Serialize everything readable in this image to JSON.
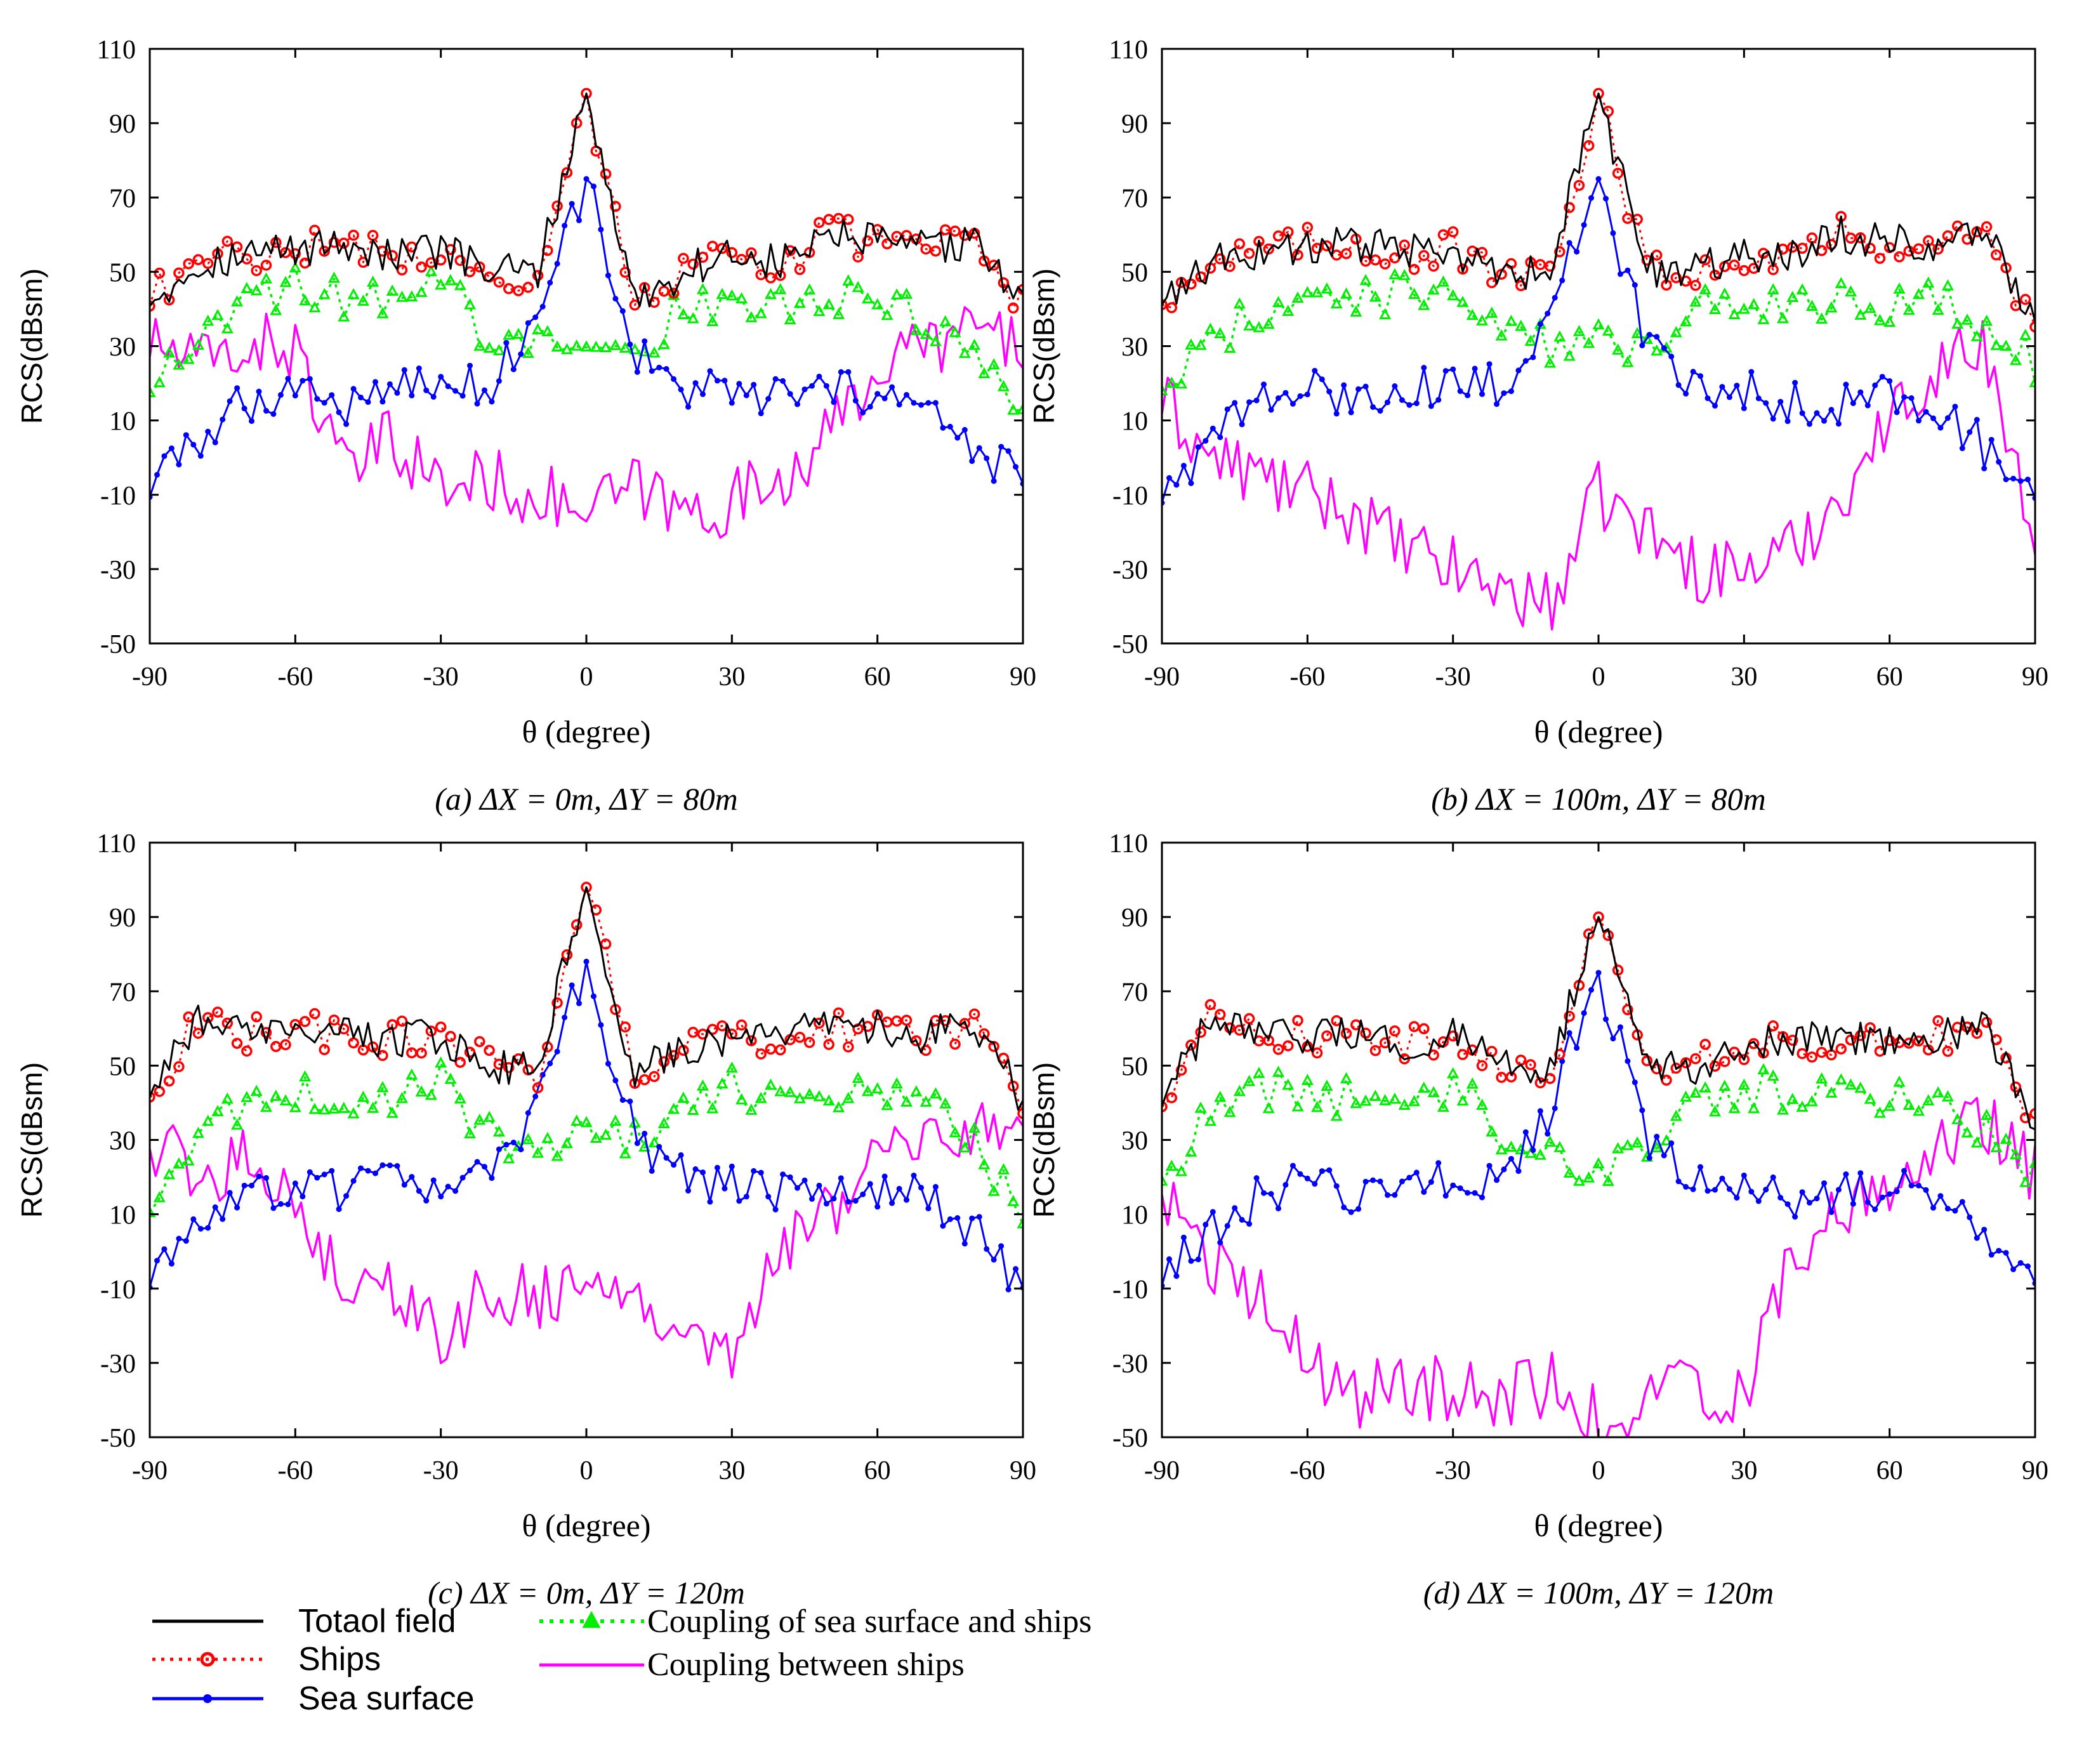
{
  "colors": {
    "total": "#000000",
    "ships": "#ff0000",
    "sea": "#0000ff",
    "coupling_sea_ships": "#00ee00",
    "coupling_ships": "#ff00ff"
  },
  "legend": {
    "total": "Totaol field",
    "ships": "Ships",
    "sea": "Sea surface",
    "coupling_sea_ships": "Coupling of sea surface and ships",
    "coupling_ships": "Coupling between ships"
  },
  "chart_data": [
    {
      "type": "line",
      "caption": "(a)  ΔX = 0m, ΔY = 80m",
      "xlabel": "θ (degree)",
      "ylabel": "RCS(dBsm)",
      "xlim": [
        -90,
        90
      ],
      "ylim": [
        -50,
        110
      ],
      "xticks": [
        "-90",
        "-60",
        "-30",
        "0",
        "30",
        "60",
        "90"
      ],
      "yticks": [
        "110",
        "90",
        "70",
        "50",
        "30",
        "10",
        "-10",
        "-30",
        "-50"
      ],
      "x": [
        -90,
        -80,
        -70,
        -60,
        -50,
        -40,
        -30,
        -20,
        -10,
        0,
        10,
        20,
        30,
        40,
        50,
        60,
        70,
        80,
        90
      ],
      "series": [
        {
          "name": "Totaol field",
          "values": [
            43,
            52,
            55,
            56,
            58,
            54,
            56,
            50,
            50,
            98,
            42,
            50,
            55,
            52,
            60,
            58,
            56,
            58,
            41
          ]
        },
        {
          "name": "Ships",
          "values": [
            43,
            52,
            55,
            56,
            58,
            54,
            56,
            50,
            48,
            98,
            42,
            50,
            55,
            52,
            60,
            58,
            56,
            58,
            41
          ]
        },
        {
          "name": "Sea surface",
          "values": [
            -8,
            5,
            15,
            19,
            14,
            20,
            19,
            20,
            38,
            75,
            28,
            18,
            17,
            16,
            17,
            18,
            12,
            1,
            -5
          ]
        },
        {
          "name": "Coupling of sea surface and ships",
          "values": [
            20,
            35,
            43,
            46,
            42,
            42,
            47,
            32,
            30,
            35,
            30,
            40,
            44,
            40,
            42,
            42,
            38,
            30,
            10
          ]
        },
        {
          "name": "Coupling between ships",
          "values": [
            31,
            25,
            30,
            30,
            -5,
            5,
            -8,
            -6,
            -10,
            -15,
            -8,
            -15,
            -12,
            -5,
            5,
            25,
            30,
            35,
            30
          ]
        }
      ]
    },
    {
      "type": "line",
      "caption": "(b)  ΔX = 100m, ΔY = 80m",
      "xlabel": "θ (degree)",
      "ylabel": "RCS(dBsm)",
      "xlim": [
        -90,
        90
      ],
      "ylim": [
        -50,
        110
      ],
      "xticks": [
        "-90",
        "-60",
        "-30",
        "0",
        "30",
        "60",
        "90"
      ],
      "yticks": [
        "110",
        "90",
        "70",
        "50",
        "30",
        "10",
        "-10",
        "-30",
        "-50"
      ],
      "x": [
        -90,
        -80,
        -70,
        -60,
        -50,
        -40,
        -30,
        -20,
        -10,
        0,
        10,
        20,
        30,
        40,
        50,
        60,
        70,
        80,
        90
      ],
      "series": [
        {
          "name": "Totaol field",
          "values": [
            43,
            52,
            56,
            57,
            58,
            55,
            56,
            48,
            50,
            98,
            50,
            50,
            55,
            55,
            60,
            58,
            58,
            60,
            35
          ]
        },
        {
          "name": "Ships",
          "values": [
            43,
            52,
            56,
            57,
            58,
            55,
            56,
            48,
            48,
            98,
            50,
            50,
            55,
            55,
            60,
            58,
            58,
            60,
            35
          ]
        },
        {
          "name": "Sea surface",
          "values": [
            -10,
            5,
            15,
            18,
            15,
            20,
            18,
            20,
            37,
            75,
            30,
            20,
            18,
            15,
            15,
            18,
            14,
            2,
            -10
          ]
        },
        {
          "name": "Coupling of sea surface and ships",
          "values": [
            20,
            30,
            40,
            44,
            42,
            44,
            47,
            32,
            30,
            30,
            30,
            42,
            44,
            40,
            42,
            42,
            42,
            35,
            25
          ]
        },
        {
          "name": "Coupling between ships",
          "values": [
            15,
            0,
            -5,
            -10,
            -15,
            -25,
            -30,
            -35,
            -40,
            -10,
            -20,
            -30,
            -30,
            -25,
            -10,
            10,
            25,
            30,
            -25
          ]
        }
      ]
    },
    {
      "type": "line",
      "caption": "(c)  ΔX = 0m, ΔY = 120m",
      "xlabel": "θ (degree)",
      "ylabel": "RCS(dBsm)",
      "xlim": [
        -90,
        90
      ],
      "ylim": [
        -50,
        110
      ],
      "xticks": [
        "-90",
        "-60",
        "-30",
        "0",
        "30",
        "60",
        "90"
      ],
      "yticks": [
        "110",
        "90",
        "70",
        "50",
        "30",
        "10",
        "-10",
        "-30",
        "-50"
      ],
      "x": [
        -90,
        -80,
        -70,
        -60,
        -50,
        -40,
        -30,
        -20,
        -10,
        0,
        10,
        20,
        30,
        40,
        50,
        60,
        70,
        80,
        90
      ],
      "series": [
        {
          "name": "Totaol field",
          "values": [
            43,
            62,
            58,
            60,
            58,
            57,
            58,
            50,
            50,
            98,
            48,
            55,
            58,
            58,
            60,
            60,
            58,
            62,
            41
          ]
        },
        {
          "name": "Ships",
          "values": [
            43,
            62,
            58,
            60,
            58,
            57,
            58,
            50,
            48,
            98,
            48,
            55,
            58,
            58,
            60,
            60,
            58,
            62,
            41
          ]
        },
        {
          "name": "Sea surface",
          "values": [
            -8,
            8,
            15,
            18,
            15,
            20,
            18,
            20,
            38,
            78,
            30,
            20,
            18,
            15,
            15,
            18,
            14,
            5,
            -10
          ]
        },
        {
          "name": "Coupling of sea surface and ships",
          "values": [
            12,
            30,
            42,
            43,
            40,
            42,
            45,
            32,
            28,
            30,
            30,
            40,
            45,
            42,
            42,
            42,
            40,
            30,
            8
          ]
        },
        {
          "name": "Coupling between ships",
          "values": [
            30,
            20,
            25,
            15,
            -10,
            -10,
            -25,
            -10,
            -12,
            -10,
            -15,
            -20,
            -25,
            0,
            10,
            25,
            30,
            35,
            30
          ]
        }
      ]
    },
    {
      "type": "line",
      "caption": "(d)  ΔX = 100m, ΔY = 120m",
      "xlabel": "θ (degree)",
      "ylabel": "RCS(dBsm)",
      "xlim": [
        -90,
        90
      ],
      "ylim": [
        -50,
        110
      ],
      "xticks": [
        "-90",
        "-60",
        "-30",
        "0",
        "30",
        "60",
        "90"
      ],
      "yticks": [
        "110",
        "90",
        "70",
        "50",
        "30",
        "10",
        "-10",
        "-30",
        "-50"
      ],
      "x": [
        -90,
        -80,
        -70,
        -60,
        -50,
        -40,
        -30,
        -20,
        -10,
        0,
        10,
        20,
        30,
        40,
        50,
        60,
        70,
        80,
        90
      ],
      "series": [
        {
          "name": "Totaol field",
          "values": [
            40,
            62,
            57,
            58,
            58,
            56,
            58,
            50,
            50,
            90,
            50,
            50,
            56,
            56,
            58,
            58,
            58,
            60,
            35
          ]
        },
        {
          "name": "Ships",
          "values": [
            40,
            62,
            57,
            58,
            58,
            56,
            58,
            50,
            48,
            90,
            50,
            50,
            56,
            56,
            58,
            58,
            58,
            60,
            35
          ]
        },
        {
          "name": "Sea surface",
          "values": [
            -8,
            5,
            15,
            18,
            15,
            20,
            18,
            20,
            38,
            75,
            30,
            20,
            18,
            15,
            15,
            18,
            14,
            5,
            -10
          ]
        },
        {
          "name": "Coupling of sea surface and ships",
          "values": [
            20,
            36,
            44,
            43,
            40,
            42,
            45,
            32,
            28,
            20,
            30,
            40,
            44,
            42,
            42,
            42,
            40,
            32,
            20
          ]
        },
        {
          "name": "Coupling between ships",
          "values": [
            17,
            -5,
            -10,
            -30,
            -40,
            -35,
            -38,
            -40,
            -35,
            -45,
            -40,
            -35,
            -40,
            0,
            10,
            20,
            30,
            35,
            20
          ]
        }
      ]
    }
  ]
}
